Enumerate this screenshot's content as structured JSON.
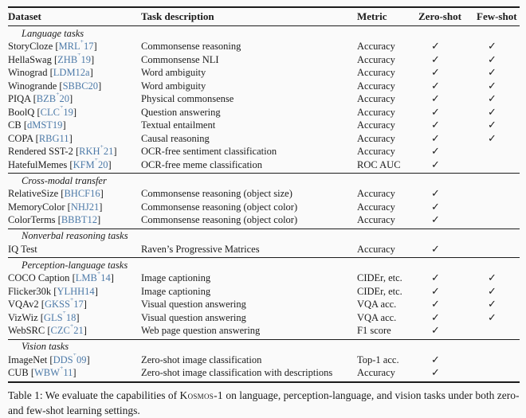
{
  "colors": {
    "ink": "#1c1c1c",
    "paper_background": "#fafafa",
    "citation_link": "#4d7aa8"
  },
  "table": {
    "headers": [
      "Dataset",
      "Task description",
      "Metric",
      "Zero-shot",
      "Few-shot"
    ],
    "checkmark": "✓",
    "sections": [
      {
        "label": "Language tasks",
        "rows": [
          {
            "dataset": "StoryCloze",
            "cite": "MRL^+17",
            "task": "Commonsense reasoning",
            "metric": "Accuracy",
            "zero_shot": true,
            "few_shot": true
          },
          {
            "dataset": "HellaSwag",
            "cite": "ZHB^+19",
            "task": "Commonsense NLI",
            "metric": "Accuracy",
            "zero_shot": true,
            "few_shot": true
          },
          {
            "dataset": "Winograd",
            "cite": "LDM12a",
            "task": "Word ambiguity",
            "metric": "Accuracy",
            "zero_shot": true,
            "few_shot": true
          },
          {
            "dataset": "Winogrande",
            "cite": "SBBC20",
            "task": "Word ambiguity",
            "metric": "Accuracy",
            "zero_shot": true,
            "few_shot": true
          },
          {
            "dataset": "PIQA",
            "cite": "BZB^+20",
            "task": "Physical commonsense",
            "metric": "Accuracy",
            "zero_shot": true,
            "few_shot": true
          },
          {
            "dataset": "BoolQ",
            "cite": "CLC^+19",
            "task": "Question answering",
            "metric": "Accuracy",
            "zero_shot": true,
            "few_shot": true
          },
          {
            "dataset": "CB",
            "cite": "dMST19",
            "task": "Textual entailment",
            "metric": "Accuracy",
            "zero_shot": true,
            "few_shot": true
          },
          {
            "dataset": "COPA",
            "cite": "RBG11",
            "task": "Causal reasoning",
            "metric": "Accuracy",
            "zero_shot": true,
            "few_shot": true
          },
          {
            "dataset": "Rendered SST-2",
            "cite": "RKH^+21",
            "task": "OCR-free sentiment classification",
            "metric": "Accuracy",
            "zero_shot": true,
            "few_shot": false
          },
          {
            "dataset": "HatefulMemes",
            "cite": "KFM^+20",
            "task": "OCR-free meme classification",
            "metric": "ROC AUC",
            "zero_shot": true,
            "few_shot": false
          }
        ]
      },
      {
        "label": "Cross-modal transfer",
        "rows": [
          {
            "dataset": "RelativeSize",
            "cite": "BHCF16",
            "task": "Commonsense reasoning (object size)",
            "metric": "Accuracy",
            "zero_shot": true,
            "few_shot": false
          },
          {
            "dataset": "MemoryColor",
            "cite": "NHJ21",
            "task": "Commonsense reasoning (object color)",
            "metric": "Accuracy",
            "zero_shot": true,
            "few_shot": false
          },
          {
            "dataset": "ColorTerms",
            "cite": "BBBT12",
            "task": "Commonsense reasoning (object color)",
            "metric": "Accuracy",
            "zero_shot": true,
            "few_shot": false
          }
        ]
      },
      {
        "label": "Nonverbal reasoning tasks",
        "rows": [
          {
            "dataset": "IQ Test",
            "cite": null,
            "task": "Raven’s Progressive Matrices",
            "metric": "Accuracy",
            "zero_shot": true,
            "few_shot": false
          }
        ]
      },
      {
        "label": "Perception-language tasks",
        "rows": [
          {
            "dataset": "COCO Caption",
            "cite": "LMB^+14",
            "task": "Image captioning",
            "metric": "CIDEr, etc.",
            "zero_shot": true,
            "few_shot": true
          },
          {
            "dataset": "Flicker30k",
            "cite": "YLHH14",
            "task": "Image captioning",
            "metric": "CIDEr, etc.",
            "zero_shot": true,
            "few_shot": true
          },
          {
            "dataset": "VQAv2",
            "cite": "GKSS^+17",
            "task": "Visual question answering",
            "metric": "VQA acc.",
            "zero_shot": true,
            "few_shot": true
          },
          {
            "dataset": "VizWiz",
            "cite": "GLS^+18",
            "task": "Visual question answering",
            "metric": "VQA acc.",
            "zero_shot": true,
            "few_shot": true
          },
          {
            "dataset": "WebSRC",
            "cite": "CZC^+21",
            "task": "Web page question answering",
            "metric": "F1 score",
            "zero_shot": true,
            "few_shot": false
          }
        ]
      },
      {
        "label": "Vision tasks",
        "rows": [
          {
            "dataset": "ImageNet",
            "cite": "DDS^+09",
            "task": "Zero-shot image classification",
            "metric": "Top-1 acc.",
            "zero_shot": true,
            "few_shot": false
          },
          {
            "dataset": "CUB",
            "cite": "WBW^+11",
            "task": "Zero-shot image classification with descriptions",
            "metric": "Accuracy",
            "zero_shot": true,
            "few_shot": false
          }
        ]
      }
    ]
  },
  "caption": {
    "part1": "Table 1: We evaluate the capabilities of ",
    "brand": "Kosmos-1",
    "part2": " on language, perception-language, and vision tasks under both zero- and few-shot learning settings."
  }
}
